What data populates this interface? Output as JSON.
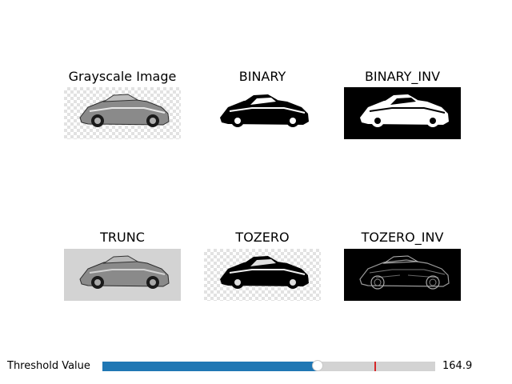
{
  "panels": [
    {
      "title": "Grayscale Image",
      "style": "grayscale"
    },
    {
      "title": "BINARY",
      "style": "binary"
    },
    {
      "title": "BINARY_INV",
      "style": "binary_inv"
    },
    {
      "title": "TRUNC",
      "style": "trunc"
    },
    {
      "title": "TOZERO",
      "style": "tozero"
    },
    {
      "title": "TOZERO_INV",
      "style": "tozero_inv"
    }
  ],
  "slider": {
    "label": "Threshold Value",
    "value_text": "164.9",
    "value": 164.9,
    "min": 0,
    "max": 255,
    "initial_value": 209,
    "fill_color": "#1f77b4",
    "track_color": "#d3d3d3",
    "initial_marker_color": "#d62728"
  }
}
